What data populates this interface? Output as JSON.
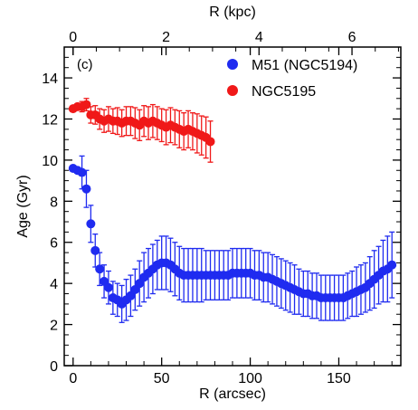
{
  "chart_data": {
    "type": "scatter",
    "panel_label": "(c)",
    "xlabel": "R (arcsec)",
    "x2label": "R (kpc)",
    "ylabel": "Age (Gyr)",
    "xlim": [
      -5,
      185
    ],
    "ylim": [
      0,
      15.5
    ],
    "x2lim": [
      -0.19,
      7.05
    ],
    "xticks": [
      0,
      50,
      100,
      150
    ],
    "x2ticks": [
      0,
      2,
      4,
      6
    ],
    "yticks": [
      0,
      2,
      4,
      6,
      8,
      10,
      12,
      14
    ],
    "legend_position": "top-right",
    "series": [
      {
        "name": "M51 (NGC5194)",
        "color": "#1f2bf0",
        "x": [
          0,
          2.5,
          5,
          7.5,
          10,
          12.5,
          15,
          17.5,
          20,
          22.5,
          25,
          27.5,
          30,
          32.5,
          35,
          37.5,
          40,
          42.5,
          45,
          47.5,
          50,
          52.5,
          55,
          57.5,
          60,
          62.5,
          65,
          67.5,
          70,
          72.5,
          75,
          77.5,
          80,
          82.5,
          85,
          87.5,
          90,
          92.5,
          95,
          97.5,
          100,
          102.5,
          105,
          107.5,
          110,
          112.5,
          115,
          117.5,
          120,
          122.5,
          125,
          127.5,
          130,
          132.5,
          135,
          137.5,
          140,
          142.5,
          145,
          147.5,
          150,
          152.5,
          155,
          157.5,
          160,
          162.5,
          165,
          167.5,
          170,
          172.5,
          175,
          177.5,
          180
        ],
        "y": [
          9.6,
          9.5,
          9.4,
          8.6,
          6.9,
          5.6,
          4.7,
          4.1,
          3.8,
          3.3,
          3.2,
          3.0,
          3.2,
          3.4,
          3.7,
          4.0,
          4.3,
          4.5,
          4.7,
          4.9,
          5.0,
          5.0,
          4.9,
          4.7,
          4.5,
          4.4,
          4.4,
          4.4,
          4.4,
          4.4,
          4.4,
          4.4,
          4.4,
          4.4,
          4.4,
          4.4,
          4.5,
          4.5,
          4.5,
          4.5,
          4.5,
          4.4,
          4.4,
          4.3,
          4.3,
          4.2,
          4.1,
          4.0,
          3.9,
          3.8,
          3.7,
          3.6,
          3.5,
          3.5,
          3.4,
          3.4,
          3.3,
          3.3,
          3.3,
          3.3,
          3.3,
          3.3,
          3.4,
          3.5,
          3.6,
          3.7,
          3.8,
          4.0,
          4.2,
          4.4,
          4.6,
          4.7,
          4.9
        ],
        "yerr": [
          0,
          0,
          0.8,
          0.9,
          0.9,
          0.8,
          0.8,
          0.8,
          0.8,
          0.8,
          0.8,
          0.9,
          1.0,
          1.0,
          1.0,
          1.1,
          1.2,
          1.2,
          1.2,
          1.2,
          1.3,
          1.3,
          1.3,
          1.3,
          1.3,
          1.3,
          1.3,
          1.3,
          1.3,
          1.3,
          1.2,
          1.2,
          1.2,
          1.2,
          1.2,
          1.2,
          1.2,
          1.2,
          1.2,
          1.2,
          1.2,
          1.2,
          1.2,
          1.2,
          1.2,
          1.2,
          1.2,
          1.2,
          1.2,
          1.2,
          1.2,
          1.1,
          1.1,
          1.1,
          1.1,
          1.1,
          1.1,
          1.1,
          1.1,
          1.1,
          1.1,
          1.1,
          1.1,
          1.1,
          1.2,
          1.2,
          1.2,
          1.3,
          1.4,
          1.4,
          1.5,
          1.6,
          1.6
        ]
      },
      {
        "name": "NGC5195",
        "color": "#f01818",
        "x": [
          0,
          2.5,
          5,
          7.5,
          10,
          12.5,
          15,
          17.5,
          20,
          22.5,
          25,
          27.5,
          30,
          32.5,
          35,
          37.5,
          40,
          42.5,
          45,
          47.5,
          50,
          52.5,
          55,
          57.5,
          60,
          62.5,
          65,
          67.5,
          70,
          72.5,
          75,
          77.5
        ],
        "y": [
          12.5,
          12.6,
          12.6,
          12.7,
          12.2,
          12.2,
          12.0,
          11.9,
          12.0,
          11.9,
          11.9,
          11.8,
          11.9,
          11.9,
          11.8,
          11.7,
          11.9,
          11.8,
          11.9,
          11.8,
          11.7,
          11.6,
          11.7,
          11.6,
          11.5,
          11.4,
          11.5,
          11.4,
          11.3,
          11.2,
          11.1,
          10.9
        ],
        "yerr": [
          0,
          0,
          0.25,
          0.3,
          0.4,
          0.45,
          0.5,
          0.55,
          0.6,
          0.6,
          0.65,
          0.65,
          0.7,
          0.7,
          0.75,
          0.75,
          0.75,
          0.8,
          0.8,
          0.8,
          0.8,
          0.85,
          0.85,
          0.85,
          0.9,
          0.9,
          0.9,
          0.9,
          0.95,
          0.95,
          1.0,
          1.0
        ]
      }
    ]
  }
}
